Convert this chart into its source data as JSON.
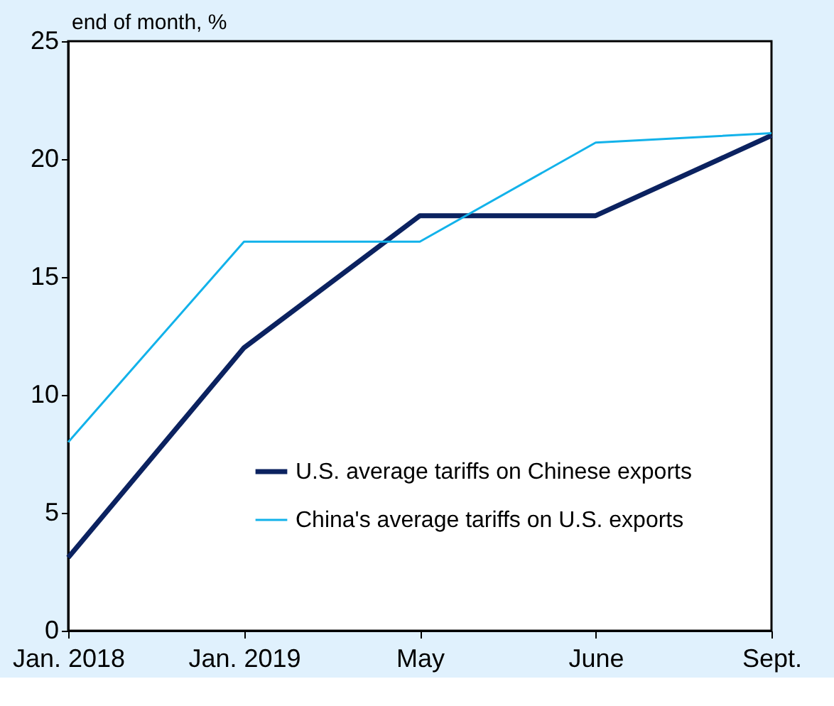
{
  "chart_data": {
    "type": "line",
    "ylabel": "end of month, %",
    "categories": [
      "Jan. 2018",
      "Jan. 2019",
      "May",
      "June",
      "Sept."
    ],
    "series": [
      {
        "name": "U.S. average tariffs on Chinese exports",
        "color": "#0b2260",
        "values": [
          3.1,
          12.0,
          17.6,
          17.6,
          21.0
        ]
      },
      {
        "name": "China's average tariffs on U.S. exports",
        "color": "#12b2ea",
        "values": [
          8.0,
          16.5,
          16.5,
          20.7,
          21.1
        ]
      }
    ],
    "ylim": [
      0,
      25
    ],
    "yticks": [
      0,
      5,
      10,
      15,
      20,
      25
    ],
    "grid": false,
    "legend": "bottom",
    "marker": "none",
    "line_style": "solid"
  }
}
